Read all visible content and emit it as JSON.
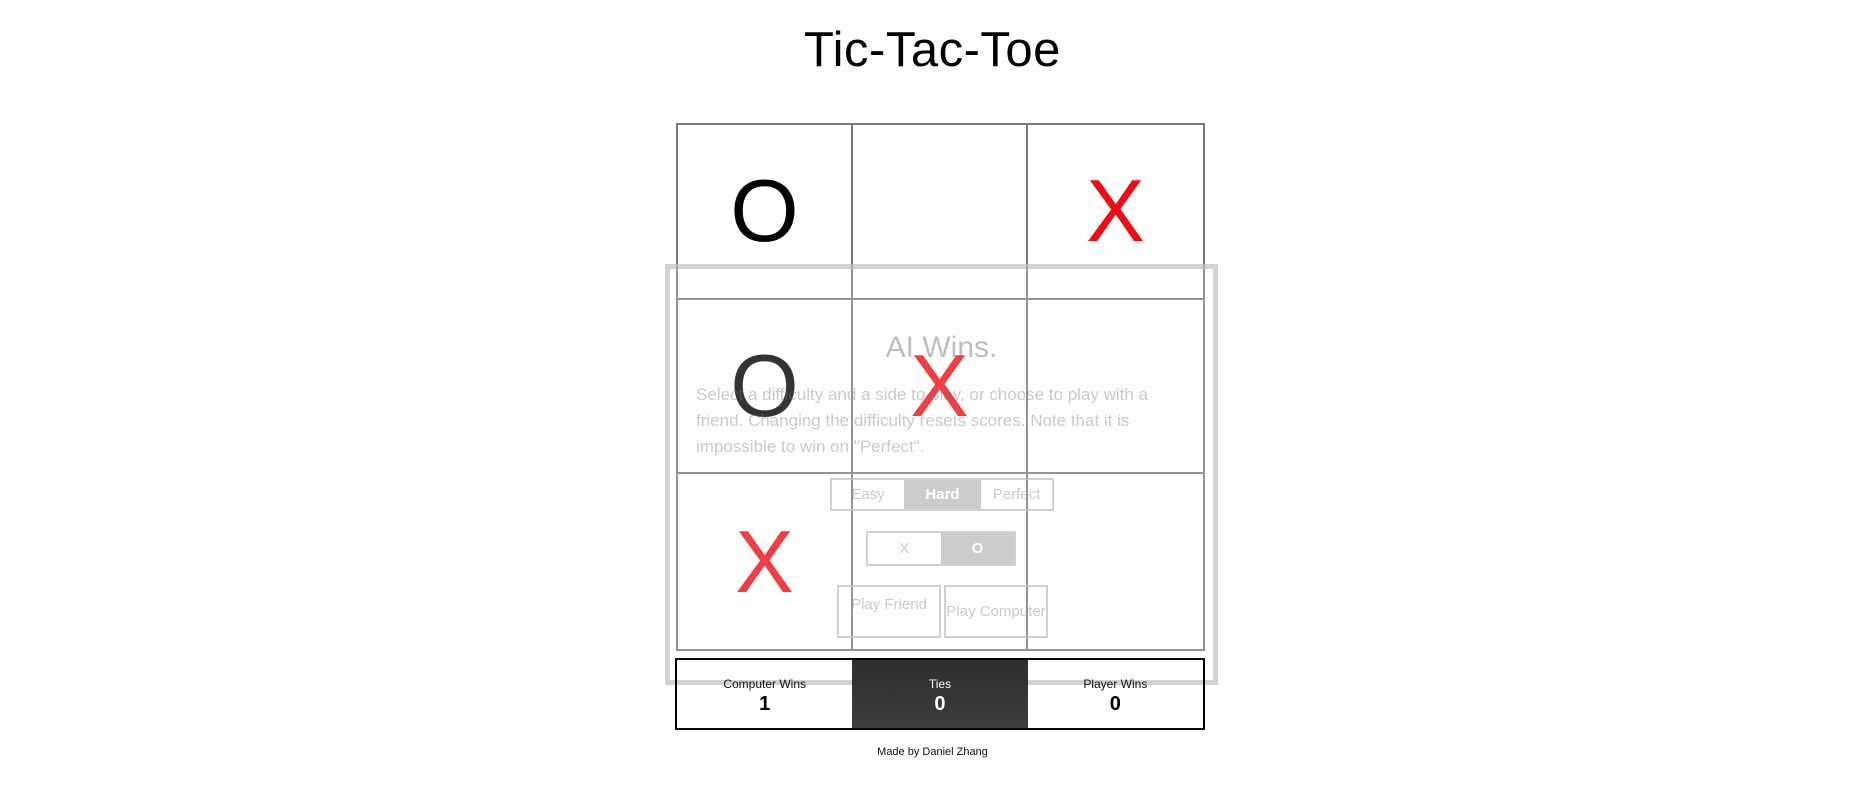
{
  "title": "Tic-Tac-Toe",
  "board": [
    {
      "mark": "O",
      "color": "#000000"
    },
    {
      "mark": "",
      "color": ""
    },
    {
      "mark": "X",
      "color": "#ea0f17"
    },
    {
      "mark": "O",
      "color": "#000000"
    },
    {
      "mark": "X",
      "color": "#ea0f17"
    },
    {
      "mark": "",
      "color": ""
    },
    {
      "mark": "X",
      "color": "#ea0f17"
    },
    {
      "mark": "",
      "color": ""
    },
    {
      "mark": "",
      "color": ""
    }
  ],
  "dialog": {
    "heading": "AI Wins.",
    "description": "Select a difficulty and a side to play, or choose to play with a friend. Changing the difficulty resets scores. Note that it is impossible to win on \"Perfect\".",
    "difficulty": {
      "options": [
        "Easy",
        "Hard",
        "Perfect"
      ],
      "selected": "Hard"
    },
    "side": {
      "options": [
        "X",
        "O"
      ],
      "selected": "O"
    },
    "play_friend_label": "Play Friend",
    "play_computer_label": "Play Computer"
  },
  "scores": {
    "computer": {
      "label": "Computer Wins",
      "value": "1"
    },
    "ties": {
      "label": "Ties",
      "value": "0"
    },
    "player": {
      "label": "Player Wins",
      "value": "0"
    }
  },
  "footer": "Made by Daniel Zhang",
  "colors": {
    "x_mark": "#ea0f17",
    "o_mark": "#000000",
    "ties_bg": "#333333"
  }
}
